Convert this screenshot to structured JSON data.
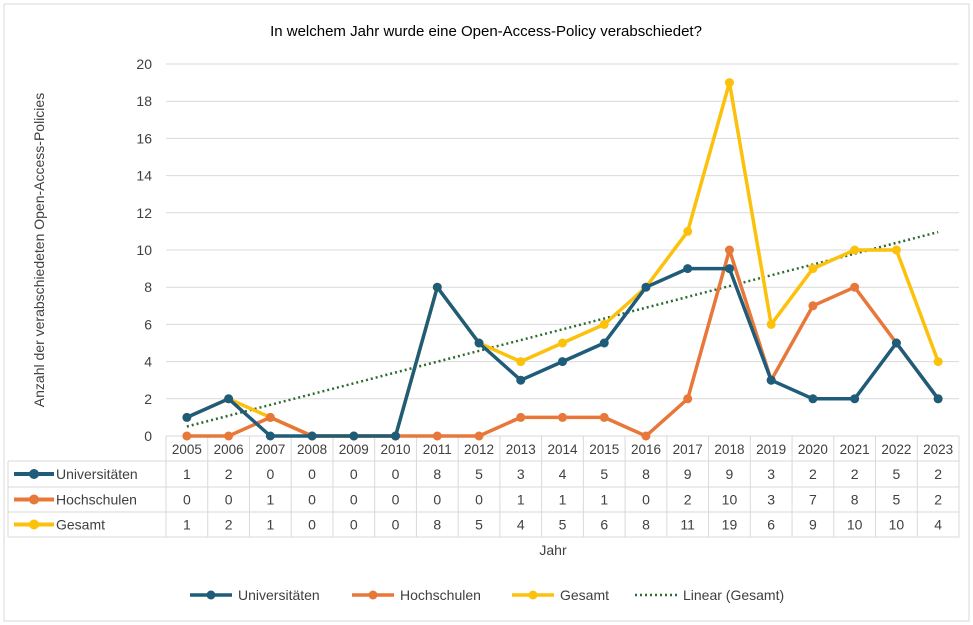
{
  "chart_data": {
    "type": "line",
    "title": "In welchem Jahr wurde eine Open-Access-Policy verabschiedet?",
    "xlabel": "Jahr",
    "ylabel": "Anzahl der verabschiedeten Open-Access-Policies",
    "ylim": [
      0,
      20
    ],
    "yticks": [
      0,
      2,
      4,
      6,
      8,
      10,
      12,
      14,
      16,
      18,
      20
    ],
    "grid": true,
    "legend_position": "bottom",
    "categories": [
      "2005",
      "2006",
      "2007",
      "2008",
      "2009",
      "2010",
      "2011",
      "2012",
      "2013",
      "2014",
      "2015",
      "2016",
      "2017",
      "2018",
      "2019",
      "2020",
      "2021",
      "2022",
      "2023"
    ],
    "series": [
      {
        "name": "Universitäten",
        "color": "#1f5c7a",
        "values": [
          1,
          2,
          0,
          0,
          0,
          0,
          8,
          5,
          3,
          4,
          5,
          8,
          9,
          9,
          3,
          2,
          2,
          5,
          2
        ]
      },
      {
        "name": "Hochschulen",
        "color": "#e8773a",
        "values": [
          0,
          0,
          1,
          0,
          0,
          0,
          0,
          0,
          1,
          1,
          1,
          0,
          2,
          10,
          3,
          7,
          8,
          5,
          2
        ]
      },
      {
        "name": "Gesamt",
        "color": "#fcc10b",
        "values": [
          1,
          2,
          1,
          0,
          0,
          0,
          8,
          5,
          4,
          5,
          6,
          8,
          11,
          19,
          6,
          9,
          10,
          10,
          4
        ]
      }
    ],
    "trendline": {
      "name": "Linear (Gesamt)",
      "type": "linear",
      "of": "Gesamt",
      "color": "#2e6b2e",
      "style": "dotted"
    },
    "data_table": true
  }
}
